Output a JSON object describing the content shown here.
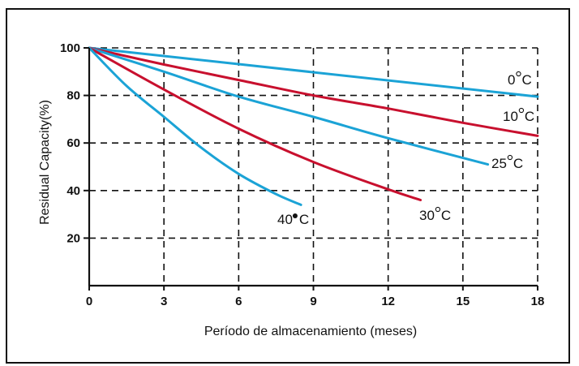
{
  "chart_data": {
    "type": "line",
    "title": "",
    "xlabel": "Período de almacenamiento (meses)",
    "ylabel": "Residual Capacity(%)",
    "xlim": [
      0,
      18
    ],
    "ylim": [
      0,
      100
    ],
    "xticks": [
      0,
      3,
      6,
      9,
      12,
      15,
      18
    ],
    "yticks": [
      20,
      40,
      60,
      80,
      100
    ],
    "grid": "dashed",
    "legend": "inline-labels",
    "series": [
      {
        "name": "0°C",
        "label_base": "0",
        "label_unit": "C",
        "color": "#1ba3d6",
        "x": [
          0,
          18
        ],
        "y": [
          100,
          79.5
        ]
      },
      {
        "name": "10°C",
        "label_base": "10",
        "label_unit": "C",
        "color": "#c8102e",
        "x": [
          0,
          3,
          6,
          9,
          12,
          15,
          18
        ],
        "y": [
          100,
          93,
          86.5,
          80,
          74.5,
          68.5,
          63
        ]
      },
      {
        "name": "25°C",
        "label_base": "25",
        "label_unit": "C",
        "color": "#1ba3d6",
        "x": [
          0,
          3,
          6,
          9,
          12,
          16
        ],
        "y": [
          100,
          90,
          79.5,
          71,
          62,
          51
        ]
      },
      {
        "name": "30°C",
        "label_base": "30",
        "label_unit": "C",
        "color": "#c8102e",
        "x": [
          0,
          3,
          6,
          9,
          12,
          13.3
        ],
        "y": [
          100,
          82.5,
          66,
          52,
          40.5,
          36
        ]
      },
      {
        "name": "40•C",
        "label_base": "40",
        "label_unit": "C",
        "color": "#1ba3d6",
        "x": [
          0,
          1.5,
          3,
          4.5,
          6,
          7.5,
          8.5
        ],
        "y": [
          100,
          84,
          71,
          58,
          47,
          38.5,
          34
        ]
      }
    ]
  }
}
